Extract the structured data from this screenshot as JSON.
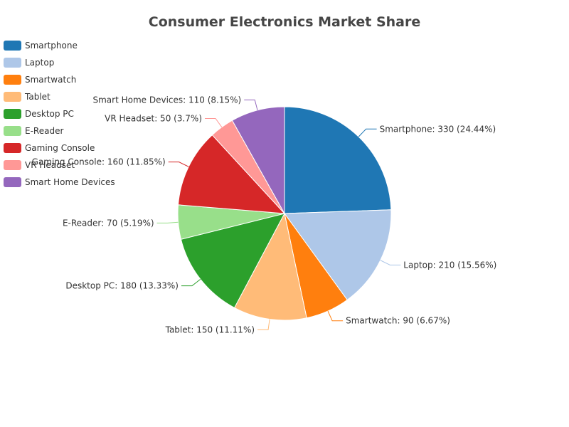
{
  "chart_data": {
    "type": "pie",
    "title": "Consumer Electronics Market Share",
    "legend_position": "top-left",
    "slices": [
      {
        "name": "Smartphone",
        "value": 330,
        "percent": "24.44%",
        "color": "#1f77b4"
      },
      {
        "name": "Laptop",
        "value": 210,
        "percent": "15.56%",
        "color": "#aec7e8"
      },
      {
        "name": "Smartwatch",
        "value": 90,
        "percent": "6.67%",
        "color": "#ff7f0e"
      },
      {
        "name": "Tablet",
        "value": 150,
        "percent": "11.11%",
        "color": "#ffbb78"
      },
      {
        "name": "Desktop PC",
        "value": 180,
        "percent": "13.33%",
        "color": "#2ca02c"
      },
      {
        "name": "E-Reader",
        "value": 70,
        "percent": "5.19%",
        "color": "#98df8a"
      },
      {
        "name": "Gaming Console",
        "value": 160,
        "percent": "11.85%",
        "color": "#d62728"
      },
      {
        "name": "VR Headset",
        "value": 50,
        "percent": "3.7%",
        "color": "#ff9896"
      },
      {
        "name": "Smart Home Devices",
        "value": 110,
        "percent": "8.15%",
        "color": "#9467bd"
      }
    ]
  }
}
